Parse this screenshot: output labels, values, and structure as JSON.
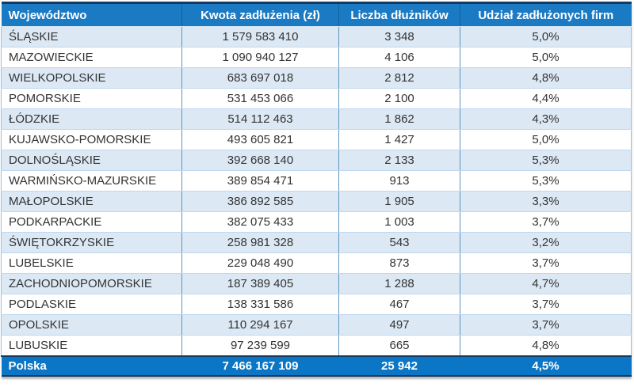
{
  "chart_data": {
    "type": "table",
    "columns": [
      "Województwo",
      "Kwota zadłużenia (zł)",
      "Liczba dłużników",
      "Udział zadłużonych firm"
    ],
    "rows": [
      [
        "ŚLĄSKIE",
        "1 579 583 410",
        "3 348",
        "5,0%"
      ],
      [
        "MAZOWIECKIE",
        "1 090 940 127",
        "4 106",
        "5,0%"
      ],
      [
        "WIELKOPOLSKIE",
        "683 697 018",
        "2 812",
        "4,8%"
      ],
      [
        "POMORSKIE",
        "531 453 066",
        "2 100",
        "4,4%"
      ],
      [
        "ŁÓDZKIE",
        "514 112 463",
        "1 862",
        "4,3%"
      ],
      [
        "KUJAWSKO-POMORSKIE",
        "493 605 821",
        "1 427",
        "5,0%"
      ],
      [
        "DOLNOŚLĄSKIE",
        "392 668 140",
        "2 133",
        "5,3%"
      ],
      [
        "WARMIŃSKO-MAZURSKIE",
        "389 854 471",
        "913",
        "5,3%"
      ],
      [
        "MAŁOPOLSKIE",
        "386 892 585",
        "1 905",
        "3,3%"
      ],
      [
        "PODKARPACKIE",
        "382 075 433",
        "1 003",
        "3,7%"
      ],
      [
        "ŚWIĘTOKRZYSKIE",
        "258 981 328",
        "543",
        "3,2%"
      ],
      [
        "LUBELSKIE",
        "229 048 490",
        "873",
        "3,7%"
      ],
      [
        "ZACHODNIOPOMORSKIE",
        "187 389 405",
        "1 288",
        "4,7%"
      ],
      [
        "PODLASKIE",
        "138 331 586",
        "467",
        "3,7%"
      ],
      [
        "OPOLSKIE",
        "110 294 167",
        "497",
        "3,7%"
      ],
      [
        "LUBUSKIE",
        "97 239 599",
        "665",
        "4,8%"
      ]
    ],
    "total_row": [
      "Polska",
      "7 466 167 109",
      "25 942",
      "4,5%"
    ]
  },
  "colors": {
    "header_background": "#1B7AC4",
    "header_text": "#FFFFFF",
    "total_row_background": "#0B76C5",
    "stripe_row_background": "#DCE9F5",
    "plain_row_background": "#FFFFFF",
    "column_divider": "#5B93BE",
    "row_divider": "#BDD7EE",
    "dark_accent_border": "#16395F",
    "body_text": "#333333"
  }
}
